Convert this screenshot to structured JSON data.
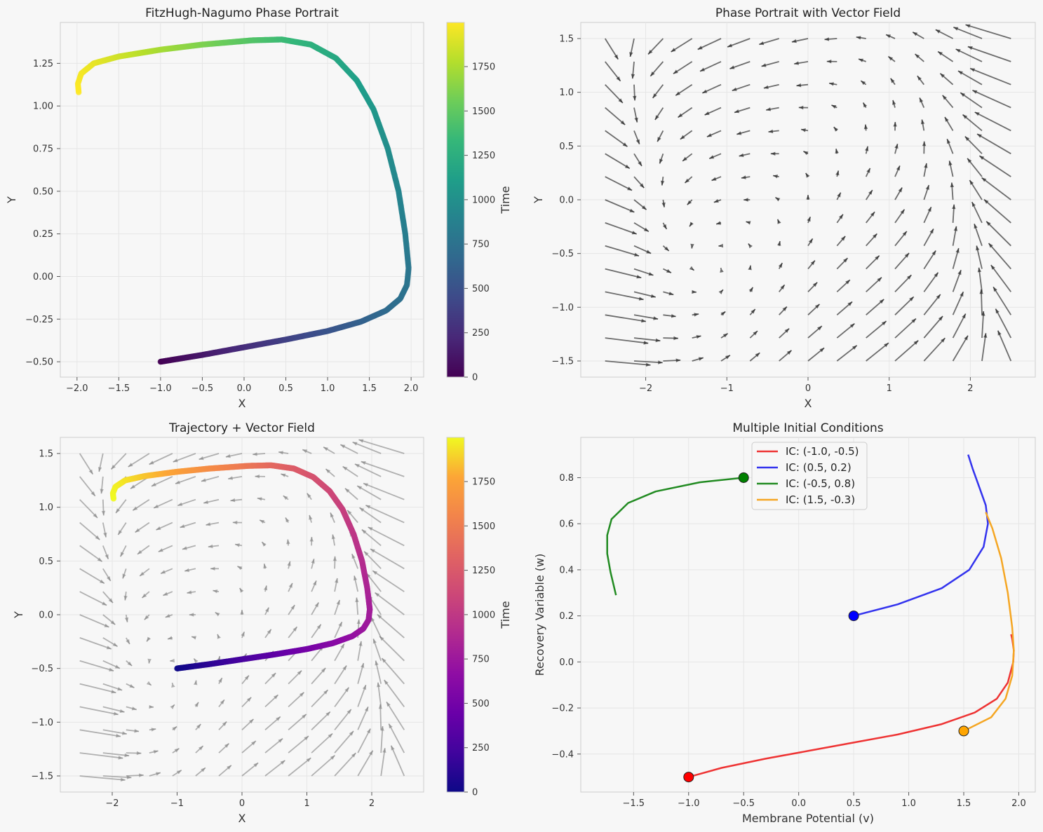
{
  "figure": {
    "background": "#f7f7f7"
  },
  "chart_data": [
    {
      "id": "p1",
      "type": "scatter",
      "title": "FitzHugh-Nagumo Phase Portrait",
      "xlabel": "X",
      "ylabel": "Y",
      "xlim": [
        -2.2,
        2.15
      ],
      "ylim": [
        -0.59,
        1.49
      ],
      "xticks": [
        -2.0,
        -1.5,
        -1.0,
        -0.5,
        0.0,
        0.5,
        1.0,
        1.5,
        2.0
      ],
      "xtick_labels": [
        "−2.0",
        "−1.5",
        "−1.0",
        "−0.5",
        "0.0",
        "0.5",
        "1.0",
        "1.5",
        "2.0"
      ],
      "yticks": [
        -0.5,
        -0.25,
        0.0,
        0.25,
        0.5,
        0.75,
        1.0,
        1.25
      ],
      "ytick_labels": [
        "−0.50",
        "−0.25",
        "0.00",
        "0.25",
        "0.50",
        "0.75",
        "1.00",
        "1.25"
      ],
      "grid": true,
      "colormap": "viridis",
      "colorbar": {
        "label": "Time",
        "range": [
          0,
          1999
        ],
        "ticks": [
          0,
          250,
          500,
          750,
          1000,
          1250,
          1500,
          1750
        ],
        "tick_labels": [
          "0",
          "250",
          "500",
          "750",
          "1000",
          "1250",
          "1500",
          "1750"
        ]
      },
      "trajectory": {
        "x": [
          -1.0,
          -0.5,
          0.0,
          0.5,
          1.0,
          1.4,
          1.7,
          1.87,
          1.95,
          1.97,
          1.93,
          1.85,
          1.72,
          1.55,
          1.35,
          1.1,
          0.8,
          0.45,
          0.1,
          -0.5,
          -1.0,
          -1.5,
          -1.8,
          -1.95,
          -1.99,
          -1.98
        ],
        "y": [
          -0.5,
          -0.46,
          -0.415,
          -0.37,
          -0.32,
          -0.265,
          -0.2,
          -0.13,
          -0.05,
          0.05,
          0.25,
          0.5,
          0.75,
          0.98,
          1.15,
          1.28,
          1.36,
          1.39,
          1.385,
          1.36,
          1.33,
          1.29,
          1.25,
          1.19,
          1.13,
          1.08
        ]
      }
    },
    {
      "id": "p2",
      "type": "quiver",
      "title": "Phase Portrait with Vector Field",
      "xlabel": "X",
      "ylabel": "Y",
      "xlim": [
        -2.8,
        2.8
      ],
      "ylim": [
        -1.65,
        1.65
      ],
      "xticks": [
        -2,
        -1,
        0,
        1,
        2
      ],
      "xtick_labels": [
        "−2",
        "−1",
        "0",
        "1",
        "2"
      ],
      "yticks": [
        -1.5,
        -1.0,
        -0.5,
        0.0,
        0.5,
        1.0,
        1.5
      ],
      "ytick_labels": [
        "−1.5",
        "−1.0",
        "−0.5",
        "0.0",
        "0.5",
        "1.0",
        "1.5"
      ],
      "grid": true,
      "arrow_color": "#222222",
      "grid_x_range": [
        -2.5,
        2.5
      ],
      "grid_y_range": [
        -1.5,
        1.5
      ],
      "grid_n": 15
    },
    {
      "id": "p3",
      "type": "scatter",
      "title": "Trajectory + Vector Field",
      "xlabel": "X",
      "ylabel": "Y",
      "xlim": [
        -2.8,
        2.8
      ],
      "ylim": [
        -1.65,
        1.65
      ],
      "xticks": [
        -2,
        -1,
        0,
        1,
        2
      ],
      "xtick_labels": [
        "−2",
        "−1",
        "0",
        "1",
        "2"
      ],
      "yticks": [
        -1.5,
        -1.0,
        -0.5,
        0.0,
        0.5,
        1.0,
        1.5
      ],
      "ytick_labels": [
        "−1.5",
        "−1.0",
        "−0.5",
        "0.0",
        "0.5",
        "1.0",
        "1.5"
      ],
      "grid": true,
      "arrow_color": "#808080",
      "colormap": "plasma",
      "colorbar": {
        "label": "Time",
        "range": [
          0,
          1999
        ],
        "ticks": [
          0,
          250,
          500,
          750,
          1000,
          1250,
          1500,
          1750
        ],
        "tick_labels": [
          "0",
          "250",
          "500",
          "750",
          "1000",
          "1250",
          "1500",
          "1750"
        ]
      }
    },
    {
      "id": "p4",
      "type": "line",
      "title": "Multiple Initial Conditions",
      "xlabel": "Membrane Potential (v)",
      "ylabel": "Recovery Variable (w)",
      "xlim": [
        -1.98,
        2.15
      ],
      "ylim": [
        -0.565,
        0.975
      ],
      "xticks": [
        -1.5,
        -1.0,
        -0.5,
        0.0,
        0.5,
        1.0,
        1.5,
        2.0
      ],
      "xtick_labels": [
        "−1.5",
        "−1.0",
        "−0.5",
        "0.0",
        "0.5",
        "1.0",
        "1.5",
        "2.0"
      ],
      "yticks": [
        -0.4,
        -0.2,
        0.0,
        0.2,
        0.4,
        0.6,
        0.8
      ],
      "ytick_labels": [
        "−0.4",
        "−0.2",
        "0.0",
        "0.2",
        "0.4",
        "0.6",
        "0.8"
      ],
      "grid": true,
      "legend": "upper center",
      "series": [
        {
          "name": "IC: (-1.0, -0.5)",
          "color": "#ee3333",
          "marker_color": "#ff0000",
          "x": [
            -1.0,
            -0.7,
            -0.3,
            0.1,
            0.5,
            0.9,
            1.3,
            1.6,
            1.8,
            1.9,
            1.95,
            1.955,
            1.94,
            1.93
          ],
          "y": [
            -0.5,
            -0.46,
            -0.42,
            -0.385,
            -0.35,
            -0.315,
            -0.27,
            -0.22,
            -0.16,
            -0.09,
            0.0,
            0.05,
            0.1,
            0.12
          ]
        },
        {
          "name": "IC: (0.5, 0.2)",
          "color": "#3333ee",
          "marker_color": "#0000ff",
          "x": [
            0.5,
            0.9,
            1.3,
            1.55,
            1.68,
            1.72,
            1.7,
            1.64,
            1.58,
            1.54
          ],
          "y": [
            0.2,
            0.25,
            0.32,
            0.4,
            0.5,
            0.6,
            0.68,
            0.76,
            0.84,
            0.9
          ]
        },
        {
          "name": "IC: (-0.5, 0.8)",
          "color": "#228b22",
          "marker_color": "#008000",
          "x": [
            -0.5,
            -0.9,
            -1.3,
            -1.55,
            -1.7,
            -1.74,
            -1.74,
            -1.71,
            -1.68,
            -1.66
          ],
          "y": [
            0.8,
            0.78,
            0.74,
            0.69,
            0.62,
            0.55,
            0.47,
            0.39,
            0.33,
            0.29
          ]
        },
        {
          "name": "IC: (1.5, -0.3)",
          "color": "#f5a623",
          "marker_color": "#ffa500",
          "x": [
            1.5,
            1.75,
            1.88,
            1.94,
            1.955,
            1.94,
            1.9,
            1.84,
            1.76,
            1.7
          ],
          "y": [
            -0.3,
            -0.24,
            -0.16,
            -0.06,
            0.05,
            0.15,
            0.3,
            0.45,
            0.58,
            0.65
          ]
        }
      ]
    }
  ]
}
